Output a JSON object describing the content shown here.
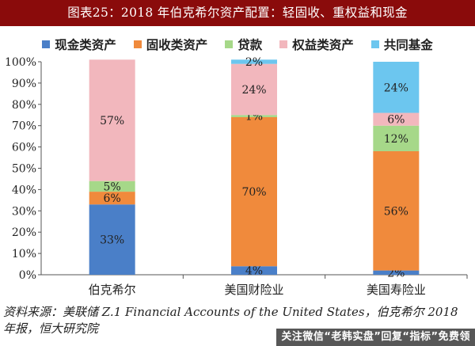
{
  "title": "图表25：2018 年伯克希尔资产配置：轻固收、重权益和现金",
  "source_line1": "资料来源：美联储 Z.1 Financial Accounts of the United States，伯克希尔 2018",
  "source_line2": "年报，恒大研究院",
  "watermark": "关注微信“老韩实盘”回复“指标”免费领",
  "chart_data": {
    "type": "bar",
    "stacked": true,
    "categories": [
      "伯克希尔",
      "美国财险业",
      "美国寿险业"
    ],
    "ylim": [
      0,
      100
    ],
    "yticks": [
      "0%",
      "10%",
      "20%",
      "30%",
      "40%",
      "50%",
      "60%",
      "70%",
      "80%",
      "90%",
      "100%"
    ],
    "legend_position": "top",
    "series": [
      {
        "name": "现金类资产",
        "color": "#4a7fc8",
        "values": [
          33,
          4,
          2
        ],
        "labels": [
          "33%",
          "4%",
          "2%"
        ]
      },
      {
        "name": "固收类资产",
        "color": "#f08a3c",
        "values": [
          6,
          70,
          56
        ],
        "labels": [
          "6%",
          "70%",
          "56%"
        ]
      },
      {
        "name": "贷款",
        "color": "#a6d889",
        "values": [
          5,
          1,
          12
        ],
        "labels": [
          "5%",
          "1%",
          "12%"
        ]
      },
      {
        "name": "权益类资产",
        "color": "#f2b7bd",
        "values": [
          57,
          24,
          6
        ],
        "labels": [
          "57%",
          "24%",
          "6%"
        ]
      },
      {
        "name": "共同基金",
        "color": "#6cc6ef",
        "values": [
          0,
          2,
          24
        ],
        "labels": [
          "",
          "2%",
          "24%"
        ]
      }
    ]
  }
}
